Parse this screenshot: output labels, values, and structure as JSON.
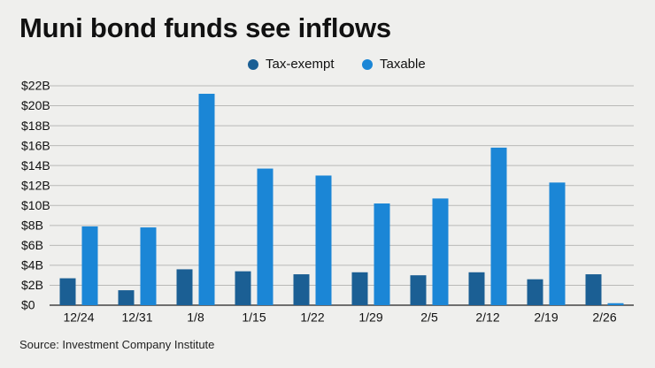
{
  "title": "Muni bond funds see inflows",
  "source": "Source: Investment Company Institute",
  "legend": [
    {
      "label": "Tax-exempt",
      "color": "#1b5f94"
    },
    {
      "label": "Taxable",
      "color": "#1b86d6"
    }
  ],
  "chart_data": {
    "type": "bar",
    "title": "Muni bond funds see inflows",
    "xlabel": "",
    "ylabel": "",
    "categories": [
      "12/24",
      "12/31",
      "1/8",
      "1/15",
      "1/22",
      "1/29",
      "2/5",
      "2/12",
      "2/19",
      "2/26"
    ],
    "series": [
      {
        "name": "Tax-exempt",
        "color": "#1b5f94",
        "values": [
          2.7,
          1.5,
          3.6,
          3.4,
          3.1,
          3.3,
          3.0,
          3.3,
          2.6,
          3.1
        ]
      },
      {
        "name": "Taxable",
        "color": "#1b86d6",
        "values": [
          7.9,
          7.8,
          21.2,
          13.7,
          13.0,
          10.2,
          10.7,
          15.8,
          12.3,
          0.2
        ]
      }
    ],
    "ylim": [
      0,
      22
    ],
    "yticks": [
      0,
      2,
      4,
      6,
      8,
      10,
      12,
      14,
      16,
      18,
      20,
      22
    ],
    "ytick_labels": [
      "$0",
      "$2B",
      "$4B",
      "$6B",
      "$8B",
      "$10B",
      "$12B",
      "$14B",
      "$16B",
      "$18B",
      "$20B",
      "$22B"
    ],
    "grid": true,
    "legend_position": "top"
  }
}
